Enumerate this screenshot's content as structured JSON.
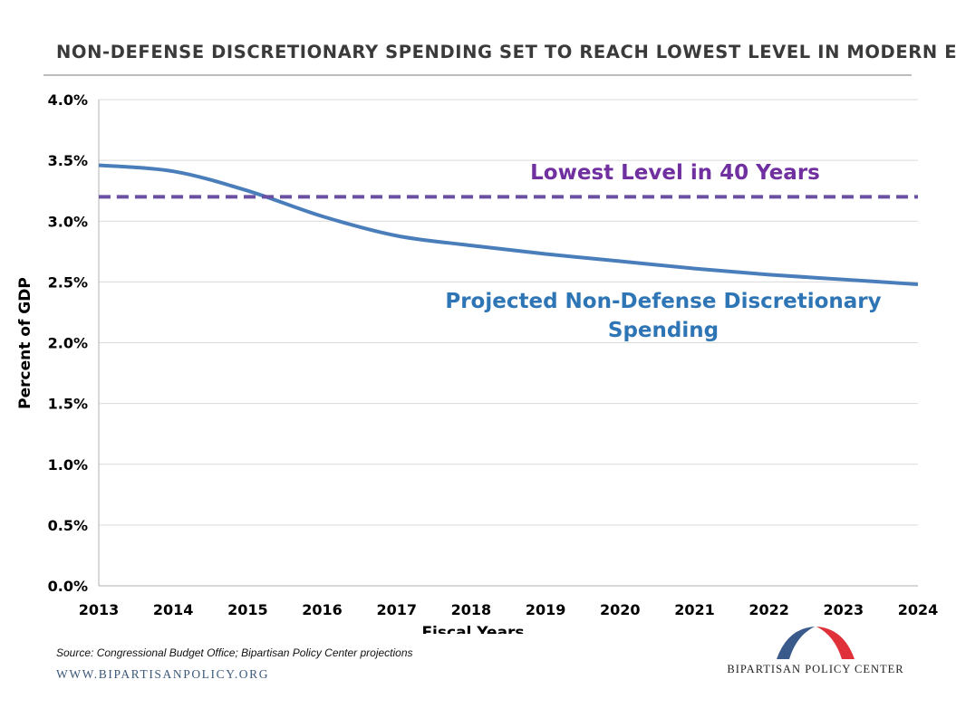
{
  "title": "NON-DEFENSE DISCRETIONARY SPENDING SET TO REACH LOWEST LEVEL IN MODERN ERA",
  "source": "Source: Congressional Budget Office; Bipartisan Policy Center projections",
  "website": "WWW.BIPARTISANPOLICY.ORG",
  "logo": {
    "text": "BIPARTISAN POLICY CENTER",
    "colors": {
      "blue": "#3a5a8c",
      "red": "#e0303a"
    }
  },
  "chart_data": {
    "type": "line",
    "xlabel": "Fiscal Years",
    "ylabel": "Percent of GDP",
    "ylim": [
      0,
      4.0
    ],
    "y_ticks": [
      "0.0%",
      "0.5%",
      "1.0%",
      "1.5%",
      "2.0%",
      "2.5%",
      "3.0%",
      "3.5%",
      "4.0%"
    ],
    "y_tick_values": [
      0,
      0.5,
      1.0,
      1.5,
      2.0,
      2.5,
      3.0,
      3.5,
      4.0
    ],
    "x": [
      2013,
      2014,
      2015,
      2016,
      2017,
      2018,
      2019,
      2020,
      2021,
      2022,
      2023,
      2024
    ],
    "x_tick_labels": [
      "2013",
      "2014",
      "2015",
      "2016",
      "2017",
      "2018",
      "2019",
      "2020",
      "2021",
      "2022",
      "2023",
      "2024"
    ],
    "grid": true,
    "series": [
      {
        "name": "Projected Non-Defense Discretionary Spending",
        "label_lines": [
          "Projected Non-Defense Discretionary",
          "Spending"
        ],
        "color": "#4a7ebb",
        "label_color": "#2e75b6",
        "style": "solid",
        "values": [
          3.46,
          3.41,
          3.25,
          3.04,
          2.88,
          2.8,
          2.73,
          2.67,
          2.61,
          2.56,
          2.52,
          2.48
        ]
      },
      {
        "name": "Lowest Level in 40 Years",
        "label_lines": [
          "Lowest Level in 40 Years"
        ],
        "color": "#6a4fa3",
        "label_color": "#7030a0",
        "style": "dashed",
        "values": [
          3.2,
          3.2,
          3.2,
          3.2,
          3.2,
          3.2,
          3.2,
          3.2,
          3.2,
          3.2,
          3.2,
          3.2
        ]
      }
    ]
  }
}
